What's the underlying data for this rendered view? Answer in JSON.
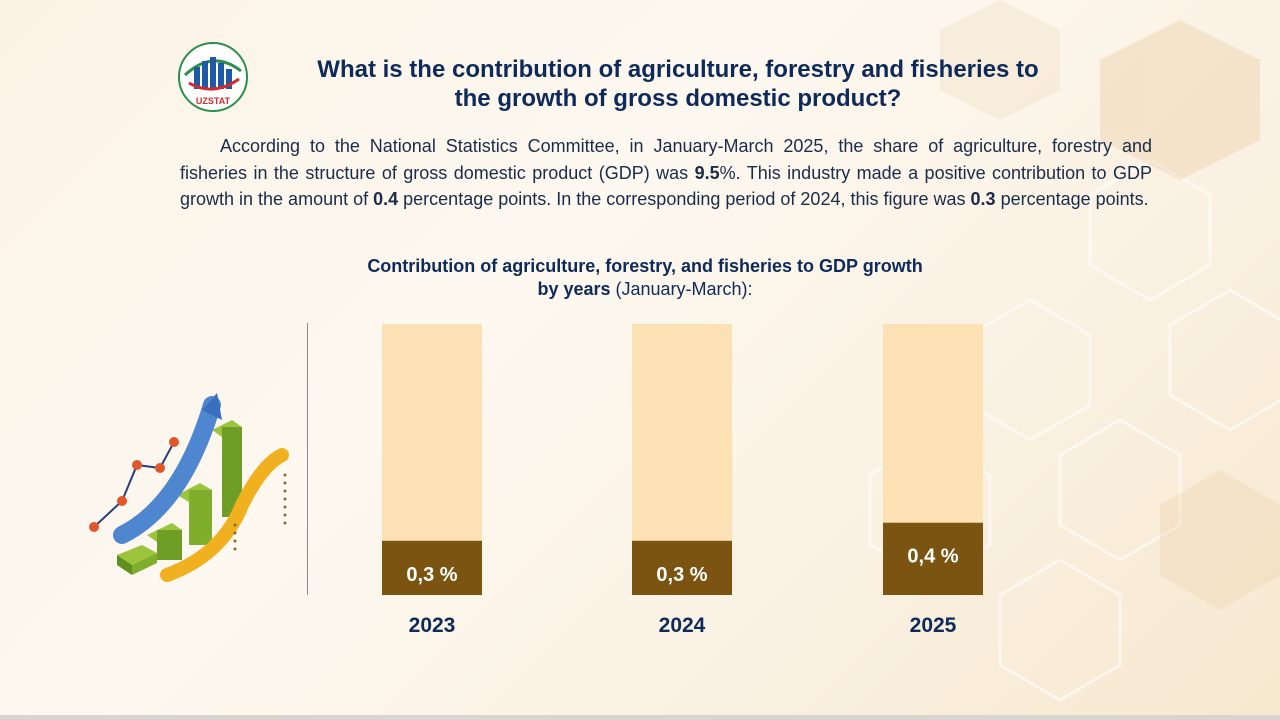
{
  "header": {
    "logo_text": "UZSTAT",
    "title_line1": "What is the contribution of agriculture, forestry and fisheries to",
    "title_line2": "the growth of gross domestic product?"
  },
  "paragraph": {
    "p1": "According to the National Statistics Committee, in January-March 2025, the share of agriculture, forestry and fisheries in the structure of gross domestic product (GDP) was ",
    "v1": "9.5",
    "p2": "%. This industry made a positive contribution to GDP growth in the amount of ",
    "v2": "0.4",
    "p3": " percentage points. In the corresponding period of 2024, this figure was ",
    "v3": "0.3",
    "p4": " percentage points."
  },
  "chart_data": {
    "type": "bar",
    "title_bold_1": "Contribution of agriculture, forestry, and fisheries to GDP growth",
    "title_bold_2": "by years",
    "title_normal": " (January-March):",
    "categories": [
      "2023",
      "2024",
      "2025"
    ],
    "values": [
      0.3,
      0.3,
      0.4
    ],
    "value_labels": [
      "0,3 %",
      "0,3 %",
      "0,4 %"
    ],
    "ylim": [
      0,
      1.5
    ],
    "xlabel": "",
    "ylabel": "",
    "colors": {
      "bar": "#7a5410",
      "track": "#fbe1b4",
      "label_text": "#ffffff",
      "category_text": "#0e2a5a"
    }
  }
}
